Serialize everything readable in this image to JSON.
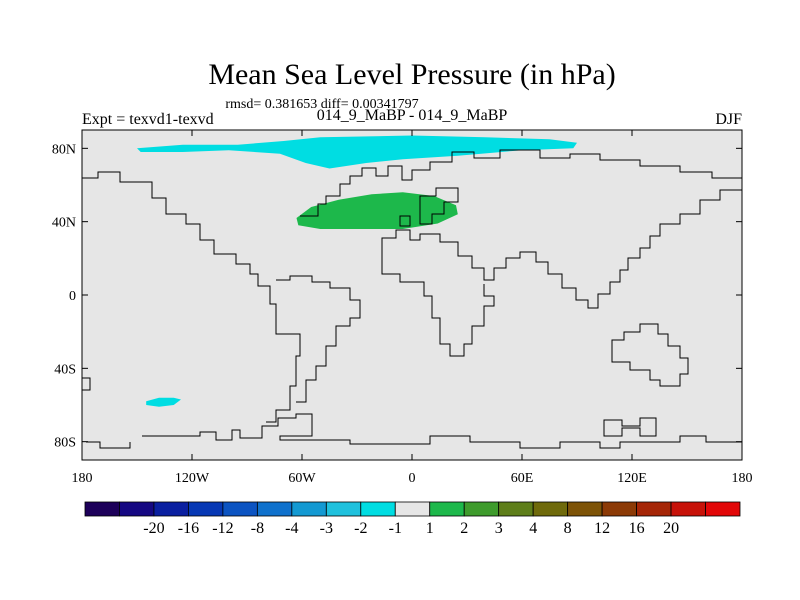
{
  "chart_data": {
    "type": "heatmap",
    "title": "Mean Sea Level Pressure (in hPa)",
    "stats": "rmsd= 0.381653 diff= 0.00341797",
    "left_label": "Expt = texvd1-texvd",
    "center_label": "014_9_MaBP - 014_9_MaBP",
    "right_label": "DJF",
    "xlim": [
      -180,
      180
    ],
    "ylim": [
      -90,
      90
    ],
    "x_ticks": [
      {
        "value": -180,
        "label": "180"
      },
      {
        "value": -120,
        "label": "120W"
      },
      {
        "value": -60,
        "label": "60W"
      },
      {
        "value": 0,
        "label": "0"
      },
      {
        "value": 60,
        "label": "60E"
      },
      {
        "value": 120,
        "label": "120E"
      },
      {
        "value": 180,
        "label": "180"
      }
    ],
    "y_ticks": [
      {
        "value": 80,
        "label": "80N"
      },
      {
        "value": 40,
        "label": "40N"
      },
      {
        "value": 0,
        "label": "0"
      },
      {
        "value": -40,
        "label": "40S"
      },
      {
        "value": -80,
        "label": "80S"
      }
    ],
    "background_level_color": "#e6e6e6",
    "colorbar": {
      "colors": [
        "#1d005a",
        "#150882",
        "#0a1fa0",
        "#0738b4",
        "#0c54c2",
        "#0f71cc",
        "#1399d2",
        "#1fc1dd",
        "#00dde2",
        "#e6e6e6",
        "#1db84b",
        "#3e9b2c",
        "#5e7e1a",
        "#6f6a0b",
        "#7d5307",
        "#8c3a06",
        "#a52607",
        "#c71209",
        "#e20708"
      ],
      "labels": [
        "-20",
        "-16",
        "-12",
        "-8",
        "-4",
        "-3",
        "-2",
        "-1",
        "1",
        "2",
        "3",
        "4",
        "8",
        "12",
        "16",
        "20"
      ]
    },
    "anomalies": [
      {
        "name": "arctic-low",
        "value_range": [
          -2,
          -1
        ],
        "color": "#00dde2",
        "points": [
          [
            -150,
            80
          ],
          [
            -125,
            82
          ],
          [
            -95,
            82
          ],
          [
            -70,
            84
          ],
          [
            -50,
            86
          ],
          [
            0,
            87
          ],
          [
            40,
            86
          ],
          [
            75,
            85
          ],
          [
            90,
            83
          ],
          [
            88,
            80
          ],
          [
            60,
            79
          ],
          [
            25,
            76
          ],
          [
            -5,
            74
          ],
          [
            -25,
            72
          ],
          [
            -45,
            69
          ],
          [
            -58,
            72
          ],
          [
            -72,
            77
          ],
          [
            -100,
            79
          ],
          [
            -125,
            78
          ],
          [
            -148,
            78
          ]
        ]
      },
      {
        "name": "eurasia-high",
        "value_range": [
          1,
          2
        ],
        "color": "#1db84b",
        "points": [
          [
            -63,
            42
          ],
          [
            -55,
            48
          ],
          [
            -40,
            52
          ],
          [
            -22,
            55
          ],
          [
            -5,
            56
          ],
          [
            12,
            54
          ],
          [
            24,
            49
          ],
          [
            25,
            44
          ],
          [
            14,
            39
          ],
          [
            -5,
            36
          ],
          [
            -28,
            36
          ],
          [
            -50,
            36
          ],
          [
            -62,
            38
          ]
        ]
      },
      {
        "name": "south-pacific-low",
        "value_range": [
          -2,
          -1
        ],
        "color": "#00dde2",
        "points": [
          [
            -145,
            -58
          ],
          [
            -138,
            -56
          ],
          [
            -130,
            -56
          ],
          [
            -126,
            -57
          ],
          [
            -130,
            -60
          ],
          [
            -138,
            -61
          ],
          [
            -145,
            -60
          ]
        ]
      }
    ]
  }
}
